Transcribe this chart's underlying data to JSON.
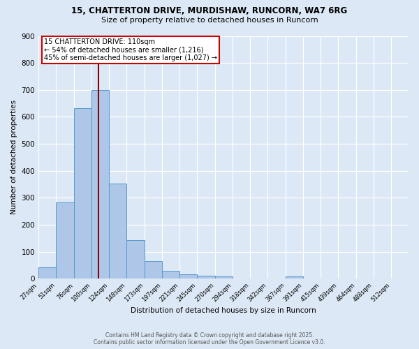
{
  "title_line1": "15, CHATTERTON DRIVE, MURDISHAW, RUNCORN, WA7 6RG",
  "title_line2": "Size of property relative to detached houses in Runcorn",
  "bar_labels": [
    "27sqm",
    "51sqm",
    "76sqm",
    "100sqm",
    "124sqm",
    "148sqm",
    "173sqm",
    "197sqm",
    "221sqm",
    "245sqm",
    "270sqm",
    "294sqm",
    "318sqm",
    "342sqm",
    "367sqm",
    "391sqm",
    "415sqm",
    "439sqm",
    "464sqm",
    "488sqm",
    "512sqm"
  ],
  "bar_values": [
    42,
    282,
    633,
    700,
    352,
    144,
    65,
    30,
    17,
    12,
    8,
    0,
    0,
    0,
    7,
    0,
    0,
    0,
    0,
    0,
    0
  ],
  "bar_color": "#aec6e8",
  "bar_edge_color": "#5599cc",
  "ylabel": "Number of detached properties",
  "xlabel": "Distribution of detached houses by size in Runcorn",
  "ylim": [
    0,
    900
  ],
  "yticks": [
    0,
    100,
    200,
    300,
    400,
    500,
    600,
    700,
    800,
    900
  ],
  "annotation_line1": "15 CHATTERTON DRIVE: 110sqm",
  "annotation_line2": "← 54% of detached houses are smaller (1,216)",
  "annotation_line3": "45% of semi-detached houses are larger (1,027) →",
  "vline_color": "#8b0000",
  "vline_x": 110,
  "bin_edges": [
    27,
    51,
    76,
    100,
    124,
    148,
    173,
    197,
    221,
    245,
    270,
    294,
    318,
    342,
    367,
    391,
    415,
    439,
    464,
    488,
    512,
    536
  ],
  "annotation_box_color": "#ffffff",
  "annotation_box_edge": "#cc0000",
  "footer_line1": "Contains HM Land Registry data © Crown copyright and database right 2025.",
  "footer_line2": "Contains public sector information licensed under the Open Government Licence v3.0.",
  "background_color": "#dce8f5",
  "axes_bg_color": "#dce8f5",
  "grid_color": "#ffffff"
}
